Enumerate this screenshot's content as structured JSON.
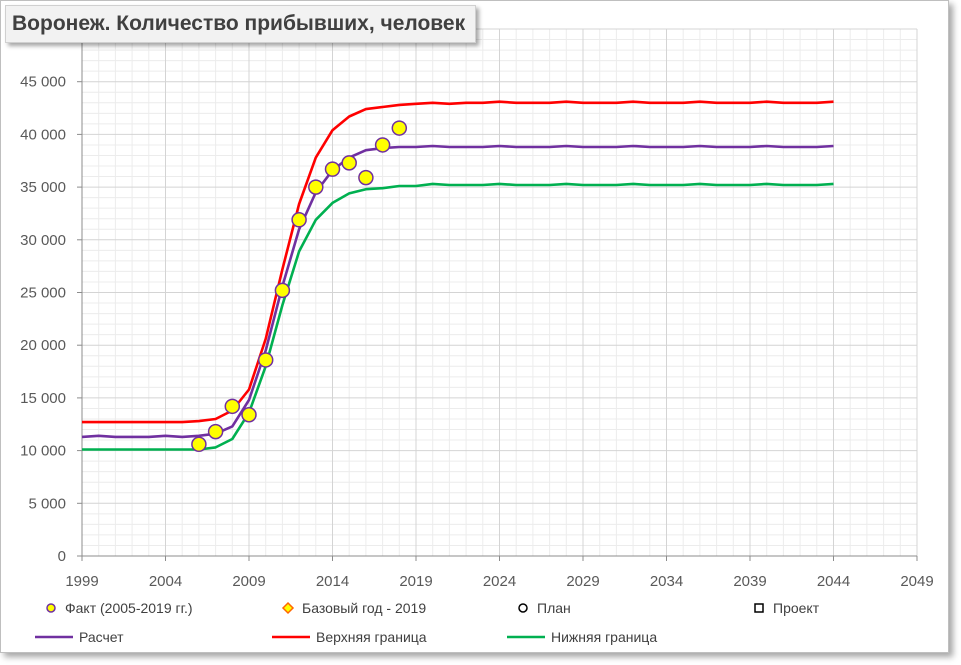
{
  "chart_data": {
    "type": "line",
    "title": "Воронеж. Количество прибывших, человек",
    "xlabel": "",
    "ylabel": "",
    "xlim": [
      1999,
      2049
    ],
    "ylim": [
      0,
      50000
    ],
    "x_ticks": [
      1999,
      2004,
      2009,
      2014,
      2019,
      2024,
      2029,
      2034,
      2039,
      2044,
      2049
    ],
    "x_tick_labels": [
      "1999",
      "2004",
      "2009",
      "2014",
      "2019",
      "2024",
      "2029",
      "2034",
      "2039",
      "2044",
      "2049"
    ],
    "y_ticks": [
      0,
      5000,
      10000,
      15000,
      20000,
      25000,
      30000,
      35000,
      40000,
      45000
    ],
    "y_tick_labels": [
      "0",
      "5 000",
      "10 000",
      "15 000",
      "20 000",
      "25 000",
      "30 000",
      "35 000",
      "40 000",
      "45 000"
    ],
    "grid": true,
    "legend_position": "bottom",
    "series": [
      {
        "name": "Факт (2005-2019 гг.)",
        "kind": "scatter",
        "color": "#ffff00",
        "edge": "#7030a0",
        "x": [
          2006,
          2007,
          2008,
          2009,
          2010,
          2011,
          2012,
          2013,
          2014,
          2015,
          2016,
          2017,
          2018
        ],
        "y": [
          10600,
          11800,
          14200,
          13400,
          18600,
          25200,
          31900,
          35000,
          36700,
          37300,
          35900,
          39000,
          40600
        ]
      },
      {
        "name": "Базовый год - 2019",
        "kind": "scatter",
        "marker": "diamond",
        "color": "#ff6600",
        "x": [],
        "y": []
      },
      {
        "name": "План",
        "kind": "scatter",
        "marker": "circle",
        "color": "#000000",
        "x": [],
        "y": []
      },
      {
        "name": "Проект",
        "kind": "scatter",
        "marker": "square",
        "color": "#000000",
        "x": [],
        "y": []
      },
      {
        "name": "Расчет",
        "kind": "line",
        "color": "#7030a0",
        "x": [
          1999,
          2000,
          2001,
          2002,
          2003,
          2004,
          2005,
          2006,
          2007,
          2008,
          2009,
          2010,
          2011,
          2012,
          2013,
          2014,
          2015,
          2016,
          2017,
          2018,
          2019,
          2020,
          2021,
          2022,
          2023,
          2024,
          2025,
          2026,
          2027,
          2028,
          2029,
          2030,
          2031,
          2032,
          2033,
          2034,
          2035,
          2036,
          2037,
          2038,
          2039,
          2040,
          2041,
          2042,
          2043,
          2044
        ],
        "y": [
          11300,
          11400,
          11300,
          11300,
          11300,
          11400,
          11300,
          11400,
          11600,
          12300,
          14800,
          19500,
          25600,
          31000,
          34500,
          36600,
          37800,
          38500,
          38700,
          38800,
          38800,
          38900,
          38800,
          38800,
          38800,
          38900,
          38800,
          38800,
          38800,
          38900,
          38800,
          38800,
          38800,
          38900,
          38800,
          38800,
          38800,
          38900,
          38800,
          38800,
          38800,
          38900,
          38800,
          38800,
          38800,
          38900
        ]
      },
      {
        "name": "Верхняя граница",
        "kind": "line",
        "color": "#ff0000",
        "x": [
          1999,
          2000,
          2001,
          2002,
          2003,
          2004,
          2005,
          2006,
          2007,
          2008,
          2009,
          2010,
          2011,
          2012,
          2013,
          2014,
          2015,
          2016,
          2017,
          2018,
          2019,
          2020,
          2021,
          2022,
          2023,
          2024,
          2025,
          2026,
          2027,
          2028,
          2029,
          2030,
          2031,
          2032,
          2033,
          2034,
          2035,
          2036,
          2037,
          2038,
          2039,
          2040,
          2041,
          2042,
          2043,
          2044
        ],
        "y": [
          12700,
          12700,
          12700,
          12700,
          12700,
          12700,
          12700,
          12800,
          13000,
          13800,
          15800,
          20600,
          27200,
          33400,
          37800,
          40400,
          41700,
          42400,
          42600,
          42800,
          42900,
          43000,
          42900,
          43000,
          43000,
          43100,
          43000,
          43000,
          43000,
          43100,
          43000,
          43000,
          43000,
          43100,
          43000,
          43000,
          43000,
          43100,
          43000,
          43000,
          43000,
          43100,
          43000,
          43000,
          43000,
          43100
        ]
      },
      {
        "name": "Нижняя граница",
        "kind": "line",
        "color": "#00b050",
        "x": [
          1999,
          2000,
          2001,
          2002,
          2003,
          2004,
          2005,
          2006,
          2007,
          2008,
          2009,
          2010,
          2011,
          2012,
          2013,
          2014,
          2015,
          2016,
          2017,
          2018,
          2019,
          2020,
          2021,
          2022,
          2023,
          2024,
          2025,
          2026,
          2027,
          2028,
          2029,
          2030,
          2031,
          2032,
          2033,
          2034,
          2035,
          2036,
          2037,
          2038,
          2039,
          2040,
          2041,
          2042,
          2043,
          2044
        ],
        "y": [
          10100,
          10100,
          10100,
          10100,
          10100,
          10100,
          10100,
          10100,
          10300,
          11100,
          13600,
          18000,
          23800,
          28900,
          31900,
          33500,
          34400,
          34800,
          34900,
          35100,
          35100,
          35300,
          35200,
          35200,
          35200,
          35300,
          35200,
          35200,
          35200,
          35300,
          35200,
          35200,
          35200,
          35300,
          35200,
          35200,
          35200,
          35300,
          35200,
          35200,
          35200,
          35300,
          35200,
          35200,
          35200,
          35300
        ]
      }
    ]
  }
}
